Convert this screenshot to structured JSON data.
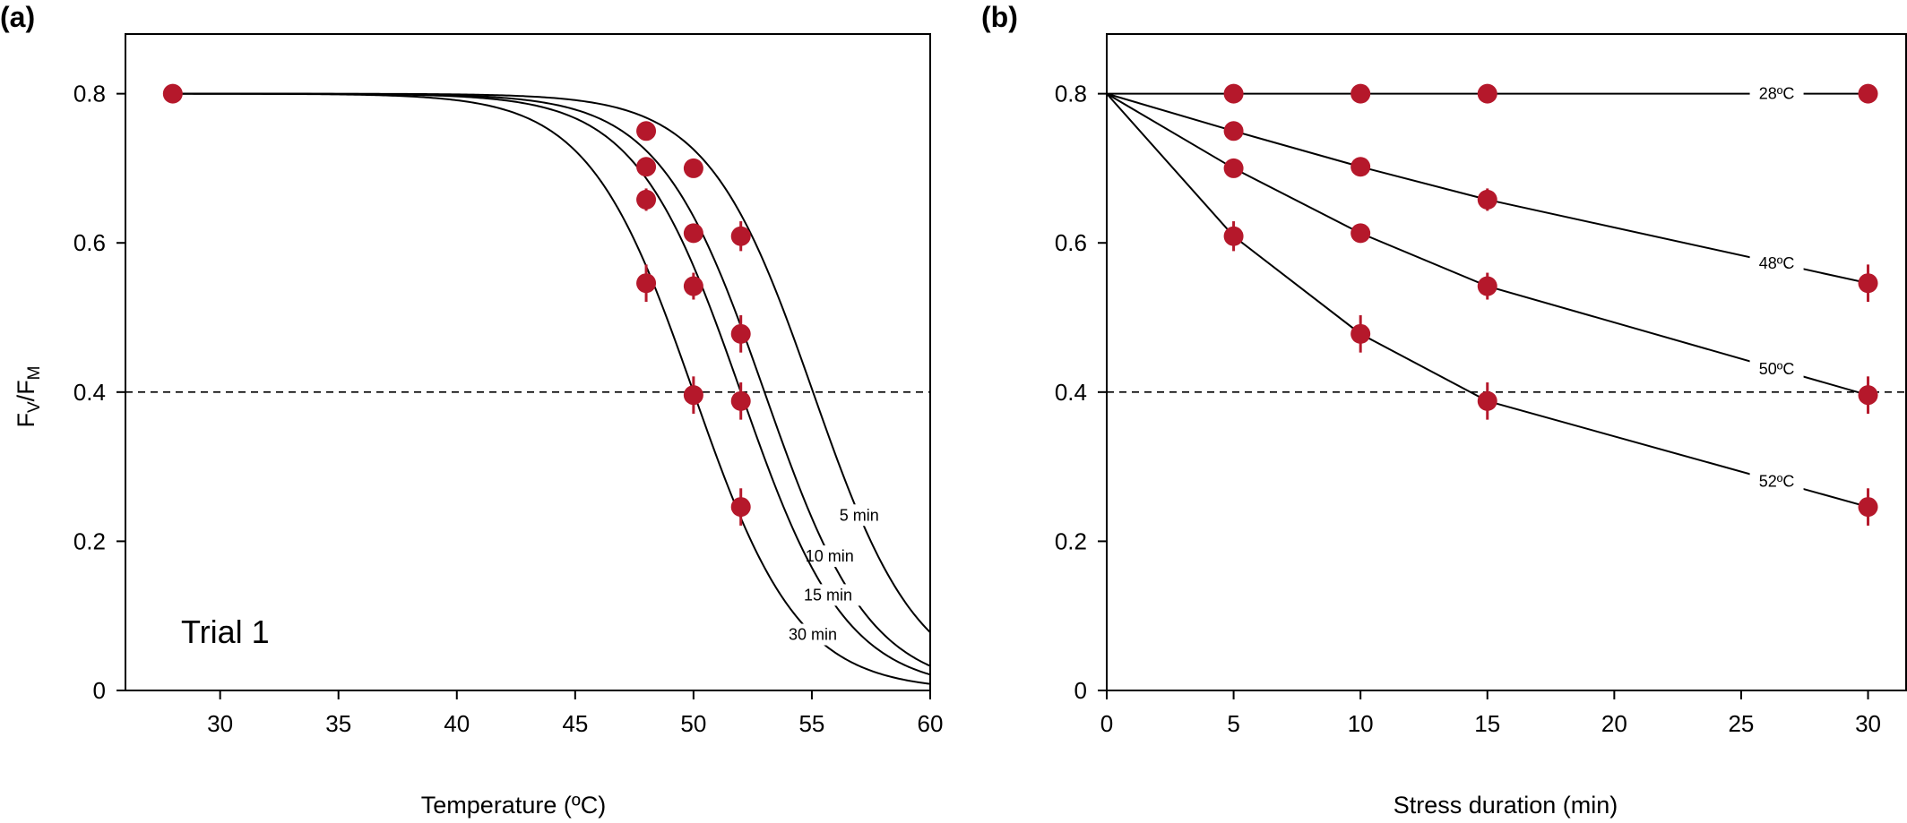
{
  "chart_data": [
    {
      "panel_label": "(a)",
      "type": "line",
      "annotation": "Trial 1",
      "xlabel": "Temperature (ºC)",
      "ylabel_parts": [
        "F",
        "V",
        "/F",
        "M"
      ],
      "xlim": [
        26,
        60
      ],
      "ylim": [
        0,
        0.88
      ],
      "xticks": [
        30,
        35,
        40,
        45,
        50,
        55,
        60
      ],
      "yticks": [
        0,
        0.2,
        0.4,
        0.6,
        0.8
      ],
      "ytick_labels": [
        "0",
        "0.2",
        "0.4",
        "0.6",
        "0.8"
      ],
      "reference_line": 0.4,
      "curves": [
        {
          "name": "5 min",
          "t50": 55.05,
          "k": 0.45,
          "max": 0.8
        },
        {
          "name": "10 min",
          "t50": 53.0,
          "k": 0.45,
          "max": 0.8
        },
        {
          "name": "15 min",
          "t50": 52.0,
          "k": 0.45,
          "max": 0.8
        },
        {
          "name": "30 min",
          "t50": 50.0,
          "k": 0.45,
          "max": 0.8
        }
      ],
      "points": [
        {
          "x": 28,
          "y": 0.8,
          "err": 0
        },
        {
          "x": 48,
          "y": 0.75,
          "err": 0.01
        },
        {
          "x": 48,
          "y": 0.702,
          "err": 0.012
        },
        {
          "x": 48,
          "y": 0.658,
          "err": 0.015
        },
        {
          "x": 48,
          "y": 0.546,
          "err": 0.025
        },
        {
          "x": 50,
          "y": 0.7,
          "err": 0.01
        },
        {
          "x": 50,
          "y": 0.613,
          "err": 0.012
        },
        {
          "x": 50,
          "y": 0.542,
          "err": 0.018
        },
        {
          "x": 50,
          "y": 0.396,
          "err": 0.025
        },
        {
          "x": 52,
          "y": 0.609,
          "err": 0.02
        },
        {
          "x": 52,
          "y": 0.478,
          "err": 0.025
        },
        {
          "x": 52,
          "y": 0.388,
          "err": 0.025
        },
        {
          "x": 52,
          "y": 0.246,
          "err": 0.025
        }
      ]
    },
    {
      "panel_label": "(b)",
      "type": "line",
      "xlabel": "Stress duration (min)",
      "xlim": [
        0,
        31.5
      ],
      "ylim": [
        0,
        0.88
      ],
      "xticks": [
        0,
        5,
        10,
        15,
        20,
        25,
        30
      ],
      "yticks": [
        0,
        0.2,
        0.4,
        0.6,
        0.8
      ],
      "ytick_labels": [
        "0",
        "0.2",
        "0.4",
        "0.6",
        "0.8"
      ],
      "reference_line": 0.4,
      "series": [
        {
          "name": "28ºC",
          "x": [
            0,
            5,
            10,
            15,
            30
          ],
          "y": [
            0.8,
            0.8,
            0.8,
            0.8,
            0.8
          ],
          "err": [
            0,
            0,
            0,
            0,
            0
          ]
        },
        {
          "name": "48ºC",
          "x": [
            0,
            5,
            10,
            15,
            30
          ],
          "y": [
            0.8,
            0.75,
            0.702,
            0.658,
            0.546
          ],
          "err": [
            0,
            0.01,
            0.012,
            0.015,
            0.025
          ]
        },
        {
          "name": "50ºC",
          "x": [
            0,
            5,
            10,
            15,
            30
          ],
          "y": [
            0.8,
            0.7,
            0.613,
            0.542,
            0.396
          ],
          "err": [
            0,
            0.01,
            0.012,
            0.018,
            0.025
          ]
        },
        {
          "name": "52ºC",
          "x": [
            0,
            5,
            10,
            15,
            30
          ],
          "y": [
            0.8,
            0.609,
            0.478,
            0.388,
            0.246
          ],
          "err": [
            0,
            0.02,
            0.025,
            0.025,
            0.025
          ]
        }
      ]
    }
  ],
  "colors": {
    "points": "#b5182b",
    "lines": "#000000"
  }
}
